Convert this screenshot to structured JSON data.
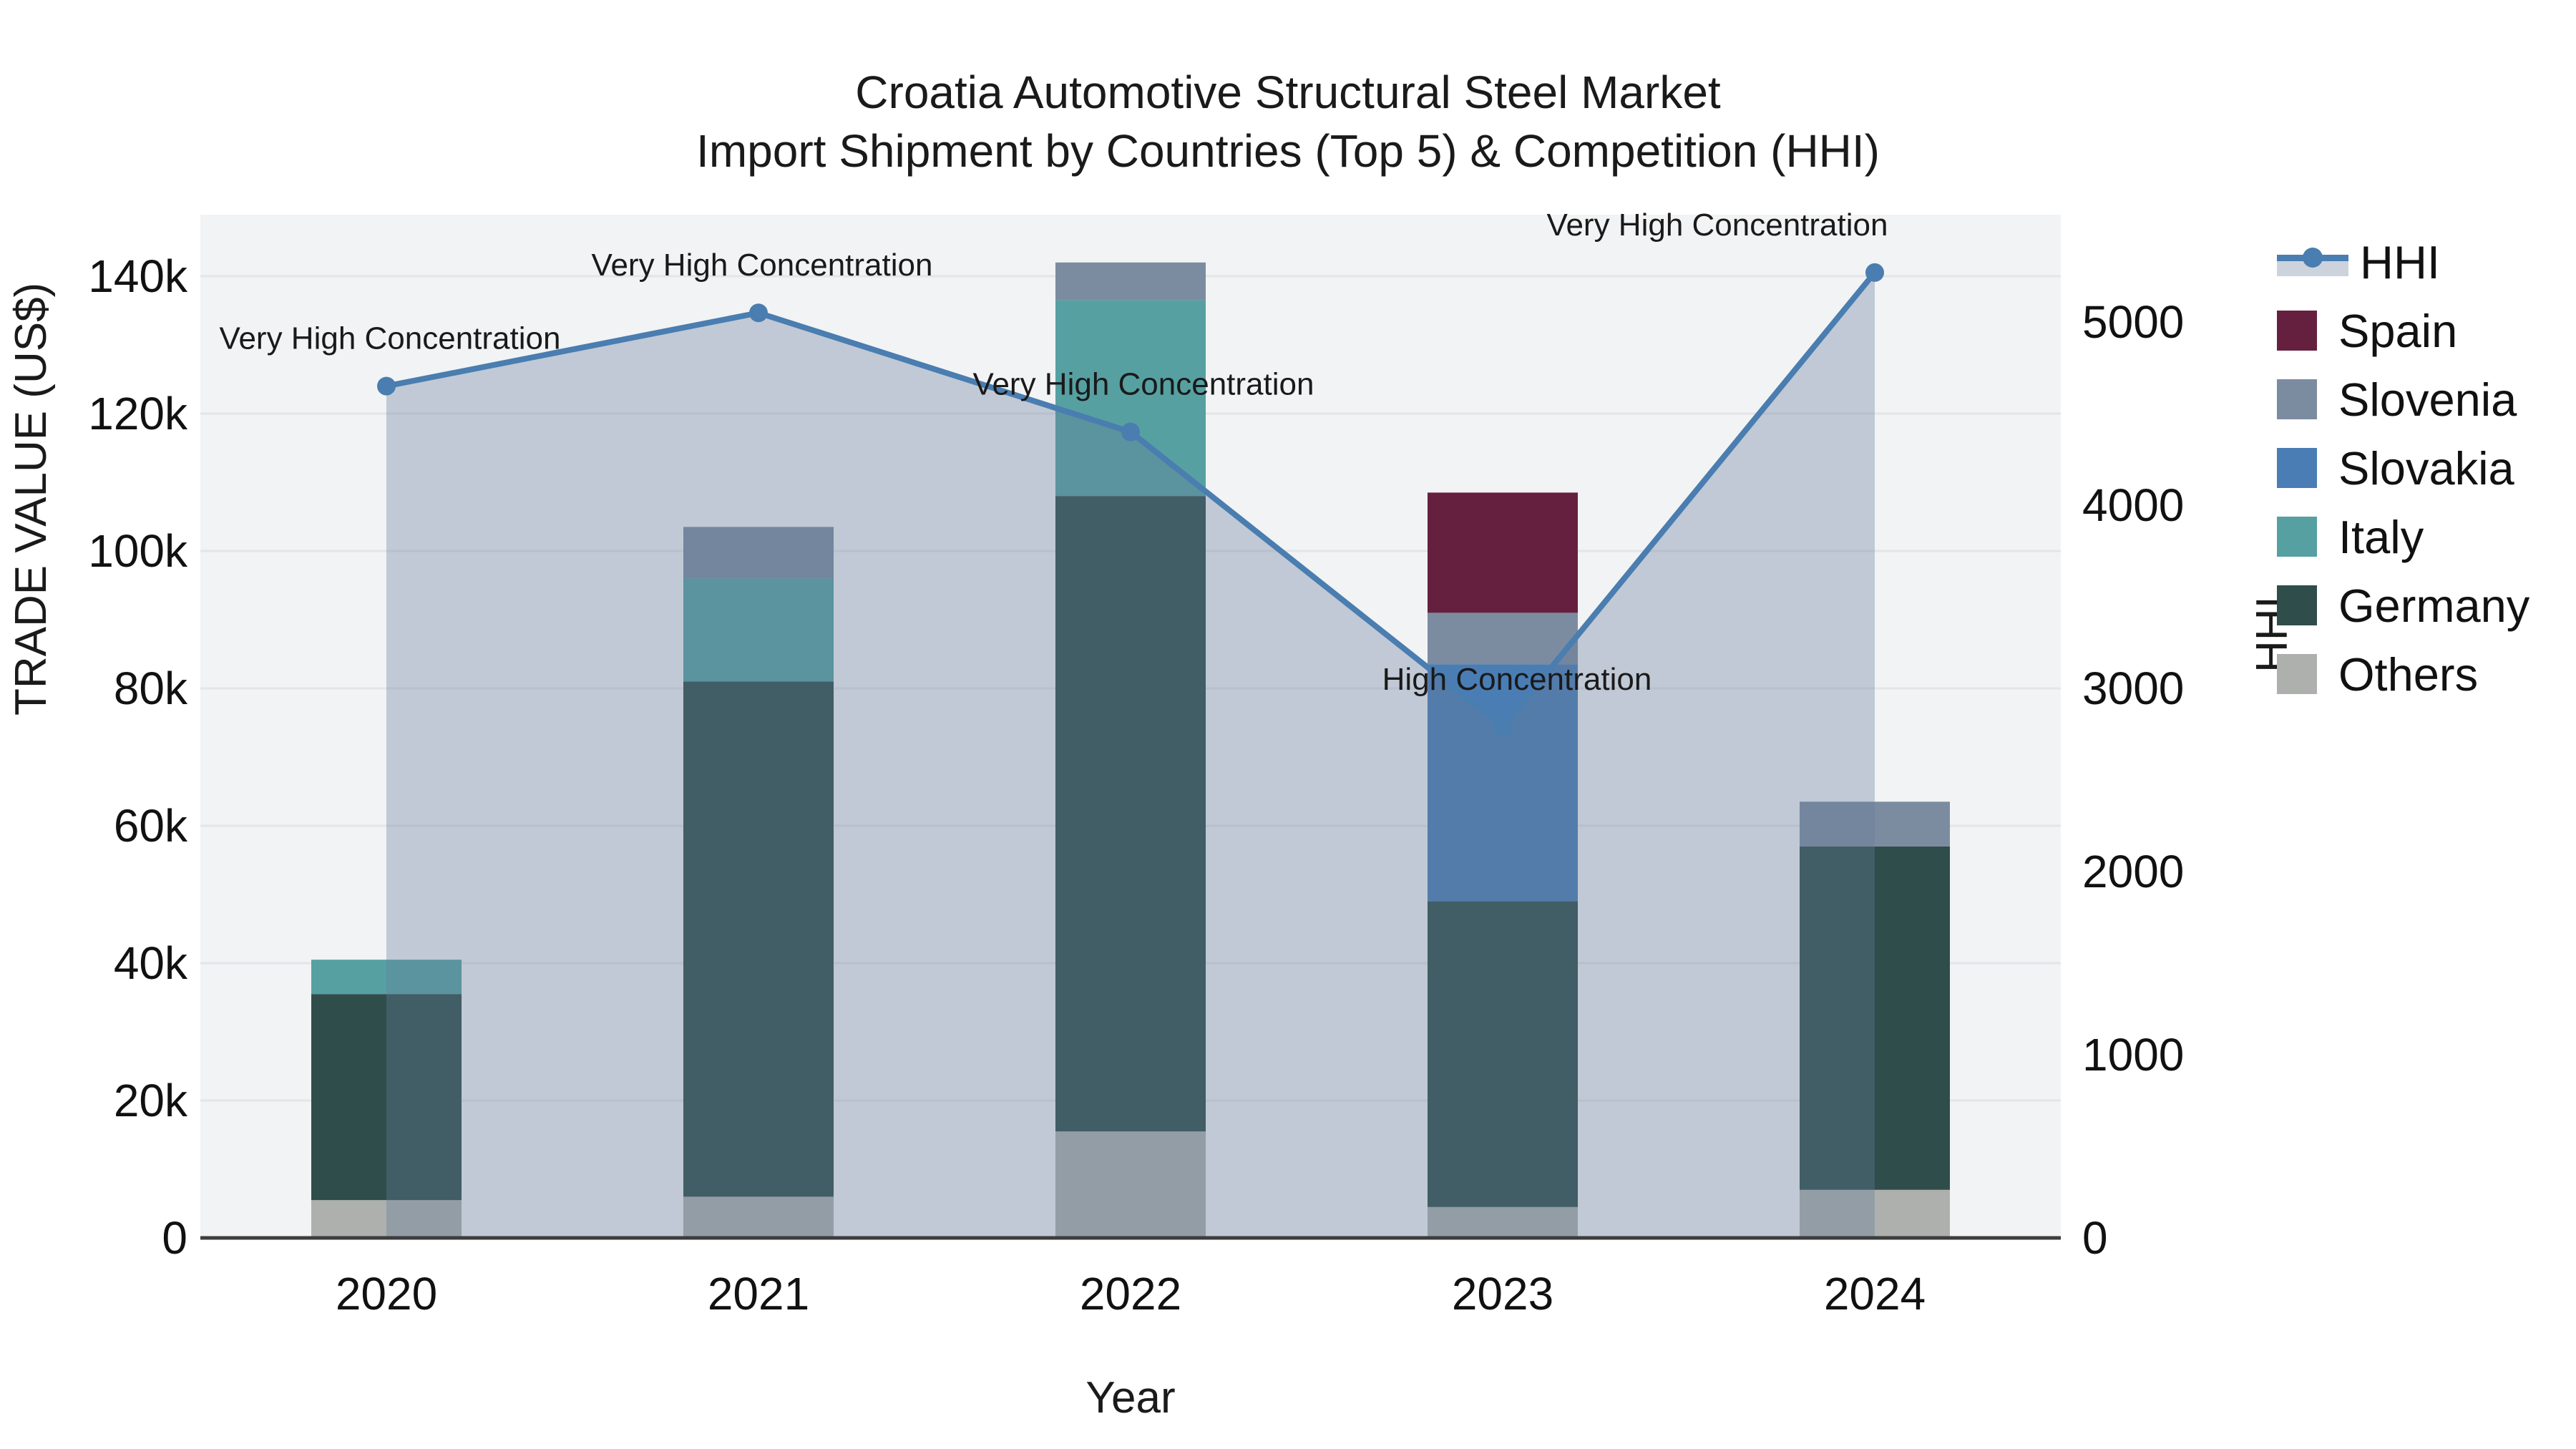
{
  "title": {
    "line1": "Croatia Automotive Structural Steel Market",
    "line2": "Import Shipment by Countries (Top 5) & Competition (HHI)"
  },
  "axes": {
    "y_left_title": "TRADE VALUE (US$)",
    "y_right_title": "HHI",
    "x_title": "Year",
    "y_left_ticks": [
      {
        "value": 0,
        "label": "0"
      },
      {
        "value": 20000,
        "label": "20k"
      },
      {
        "value": 40000,
        "label": "40k"
      },
      {
        "value": 60000,
        "label": "60k"
      },
      {
        "value": 80000,
        "label": "80k"
      },
      {
        "value": 100000,
        "label": "100k"
      },
      {
        "value": 120000,
        "label": "120k"
      },
      {
        "value": 140000,
        "label": "140k"
      }
    ],
    "y_right_ticks": [
      {
        "value": 0,
        "label": "0"
      },
      {
        "value": 1000,
        "label": "1000"
      },
      {
        "value": 2000,
        "label": "2000"
      },
      {
        "value": 3000,
        "label": "3000"
      },
      {
        "value": 4000,
        "label": "4000"
      },
      {
        "value": 5000,
        "label": "5000"
      }
    ]
  },
  "legend": {
    "items": [
      {
        "label": "HHI",
        "type": "line"
      },
      {
        "label": "Spain",
        "type": "swatch",
        "color": "#66203f"
      },
      {
        "label": "Slovenia",
        "type": "swatch",
        "color": "#7c8ca0"
      },
      {
        "label": "Slovakia",
        "type": "swatch",
        "color": "#4a7db4"
      },
      {
        "label": "Italy",
        "type": "swatch",
        "color": "#56a0a2"
      },
      {
        "label": "Germany",
        "type": "swatch",
        "color": "#2f4d4b"
      },
      {
        "label": "Others",
        "type": "swatch",
        "color": "#adb0ad"
      }
    ]
  },
  "chart_data": {
    "type": "bar+line",
    "title": "Croatia Automotive Structural Steel Market — Import Shipment by Countries (Top 5) & Competition (HHI)",
    "categories": [
      "2020",
      "2021",
      "2022",
      "2023",
      "2024"
    ],
    "stacked_series": [
      {
        "name": "Others",
        "color": "#adb0ad",
        "values": [
          5500,
          6000,
          15500,
          4500,
          7000
        ]
      },
      {
        "name": "Germany",
        "color": "#2f4d4b",
        "values": [
          30000,
          75000,
          92500,
          44500,
          50000
        ]
      },
      {
        "name": "Italy",
        "color": "#56a0a2",
        "values": [
          5000,
          15000,
          28500,
          0,
          0
        ]
      },
      {
        "name": "Slovakia",
        "color": "#4a7db4",
        "values": [
          0,
          0,
          0,
          34500,
          0
        ]
      },
      {
        "name": "Slovenia",
        "color": "#7c8ca0",
        "values": [
          0,
          7500,
          5500,
          7500,
          6500
        ]
      },
      {
        "name": "Spain",
        "color": "#66203f",
        "values": [
          0,
          0,
          0,
          17500,
          0
        ]
      }
    ],
    "line_series": {
      "name": "HHI",
      "color": "#4a7db0",
      "area_fill": "rgba(99,124,154,0.35)",
      "values": [
        4650,
        5050,
        4400,
        2790,
        5270
      ],
      "annotations": [
        "Very High Concentration",
        "Very High Concentration",
        "Very High Concentration",
        "High Concentration",
        "Very High Concentration"
      ]
    },
    "xlabel": "Year",
    "ylabel_left": "TRADE VALUE (US$)",
    "ylabel_right": "HHI",
    "ylim_left": [
      0,
      149000
    ],
    "ylim_right": [
      0,
      5586
    ],
    "grid": true,
    "legend_position": "right"
  },
  "style": {
    "plot_bg": "#f2f3f4",
    "gridline": "#e3e5e7",
    "baseline": "#3d3d3d",
    "annotation_color": "#1a1a1a",
    "tick_color": "#111111"
  }
}
